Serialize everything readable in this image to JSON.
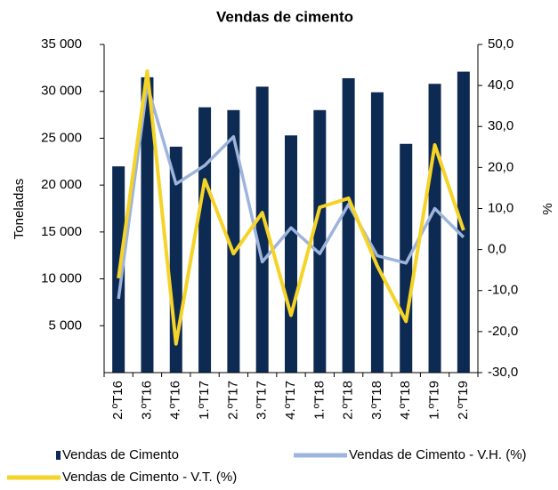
{
  "chart_data": {
    "type": "bar_line",
    "title": "Vendas de cimento",
    "y_label": "Toneladas",
    "y2_label": "%",
    "categories": [
      "2.ºT16",
      "3.ºT16",
      "4.ºT16",
      "1.ºT17",
      "2.ºT17",
      "3.ºT17",
      "4.ºT17",
      "1.ºT18",
      "2.ºT18",
      "3.ºT18",
      "4.ºT18",
      "1.ºT19",
      "2.ºT19"
    ],
    "series": [
      {
        "name": "Vendas de Cimento",
        "type": "bar",
        "color": "#0d2a52",
        "values": [
          22000,
          31500,
          24100,
          28300,
          28000,
          30500,
          25300,
          28000,
          31400,
          29900,
          24400,
          30800,
          32100
        ]
      },
      {
        "name": "Vendas de Cimento - V.H. (%)",
        "type": "line",
        "axis": "y2",
        "color": "#9db4dc",
        "values": [
          -12,
          40,
          16,
          20.5,
          27.5,
          -3,
          5.3,
          -1,
          11,
          -1.5,
          -3.3,
          10,
          3
        ]
      },
      {
        "name": "Vendas de Cimento - V.T. (%)",
        "type": "line",
        "axis": "y2",
        "color": "#f5d327",
        "values": [
          -7,
          43.5,
          -23,
          17,
          -1,
          9,
          -16,
          10.3,
          12.5,
          -4,
          -17.5,
          25.5,
          4.7
        ]
      }
    ],
    "ylim": [
      0,
      35000
    ],
    "yticks": [
      {
        "value": 5000,
        "label": "5 000"
      },
      {
        "value": 10000,
        "label": "10 000"
      },
      {
        "value": 15000,
        "label": "15 000"
      },
      {
        "value": 20000,
        "label": "20 000"
      },
      {
        "value": 25000,
        "label": "25 000"
      },
      {
        "value": 30000,
        "label": "30 000"
      },
      {
        "value": 35000,
        "label": "35 000"
      }
    ],
    "y2lim": [
      -30,
      50
    ],
    "y2ticks": [
      {
        "value": -30,
        "label": "-30,0"
      },
      {
        "value": -20,
        "label": "-20,0"
      },
      {
        "value": -10,
        "label": "-10,0"
      },
      {
        "value": 0,
        "label": "0,0"
      },
      {
        "value": 10,
        "label": "10,0"
      },
      {
        "value": 20,
        "label": "20,0"
      },
      {
        "value": 30,
        "label": "30,0"
      },
      {
        "value": 40,
        "label": "40,0"
      },
      {
        "value": 50,
        "label": "50,0"
      }
    ],
    "grid": false
  }
}
